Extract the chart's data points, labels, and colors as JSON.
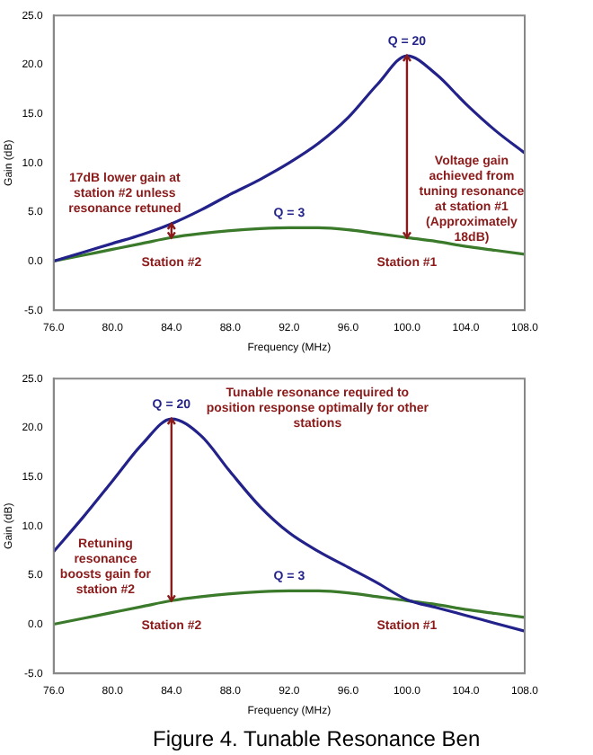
{
  "chart_data": [
    {
      "type": "line",
      "xlabel": "Frequency (MHz)",
      "ylabel": "Gain (dB)",
      "x": [
        76,
        78,
        80,
        82,
        84,
        86,
        88,
        90,
        92,
        94,
        96,
        98,
        100,
        102,
        104,
        106,
        108
      ],
      "series": [
        {
          "color": "#22228a",
          "values": [
            0,
            0.9,
            1.8,
            2.7,
            3.8,
            5.2,
            6.8,
            8.3,
            10.0,
            12.0,
            14.6,
            18.0,
            20.9,
            19.0,
            16.0,
            13.3,
            11.0
          ]
        },
        {
          "color": "#3a7a2a",
          "values": [
            0,
            0.6,
            1.2,
            1.8,
            2.4,
            2.8,
            3.1,
            3.3,
            3.4,
            3.4,
            3.2,
            2.8,
            2.4,
            2.0,
            1.5,
            1.1,
            0.7
          ]
        }
      ],
      "xlim": [
        76,
        108
      ],
      "xticks": [
        {
          "value": 76,
          "label": "76.0"
        },
        {
          "value": 80,
          "label": "80.0"
        },
        {
          "value": 84,
          "label": "84.0"
        },
        {
          "value": 88,
          "label": "88.0"
        },
        {
          "value": 92,
          "label": "92.0"
        },
        {
          "value": 96,
          "label": "96.0"
        },
        {
          "value": 100,
          "label": "100.0"
        },
        {
          "value": 104,
          "label": "104.0"
        },
        {
          "value": 108,
          "label": "108.0"
        }
      ],
      "ylim": [
        -5,
        25
      ],
      "yticks": [
        {
          "value": -5,
          "label": "-5.0"
        },
        {
          "value": 0,
          "label": "0.0"
        },
        {
          "value": 5,
          "label": "5.0"
        },
        {
          "value": 10,
          "label": "10.0"
        },
        {
          "value": 15,
          "label": "15.0"
        },
        {
          "value": 20,
          "label": "20.0"
        },
        {
          "value": 25,
          "label": "25.0"
        }
      ],
      "grid": false,
      "legend": false,
      "marker": "none",
      "line_style": "solid",
      "annotations": [
        {
          "text": "Q = 20",
          "x": 100,
          "y": 20.9
        },
        {
          "text": "Q = 3",
          "x": 92,
          "y": 3.4
        },
        {
          "text": "17dB lower gain at station #2 unless resonance retuned",
          "x": 84,
          "y": 3.8
        },
        {
          "text": "Voltage gain achieved from tuning resonance at station #1 (Approximately 18dB)",
          "x": 100,
          "y": 20.9
        },
        {
          "text": "Station #2",
          "x": 84,
          "y": 2.4
        },
        {
          "text": "Station #1",
          "x": 100,
          "y": 2.4
        }
      ]
    },
    {
      "type": "line",
      "xlabel": "Frequency (MHz)",
      "ylabel": "Gain (dB)",
      "x": [
        76,
        78,
        80,
        82,
        84,
        86,
        88,
        90,
        92,
        94,
        96,
        98,
        100,
        102,
        104,
        106,
        108
      ],
      "series": [
        {
          "color": "#22228a",
          "values": [
            7.4,
            10.9,
            14.6,
            18.3,
            20.9,
            19.2,
            15.5,
            12.0,
            9.3,
            7.4,
            5.8,
            4.2,
            2.5,
            1.7,
            0.9,
            0.1,
            -0.7
          ]
        },
        {
          "color": "#3a7a2a",
          "values": [
            0,
            0.6,
            1.2,
            1.8,
            2.4,
            2.8,
            3.1,
            3.3,
            3.4,
            3.4,
            3.2,
            2.8,
            2.4,
            2.0,
            1.5,
            1.1,
            0.7
          ]
        }
      ],
      "xlim": [
        76,
        108
      ],
      "xticks": [
        {
          "value": 76,
          "label": "76.0"
        },
        {
          "value": 80,
          "label": "80.0"
        },
        {
          "value": 84,
          "label": "84.0"
        },
        {
          "value": 88,
          "label": "88.0"
        },
        {
          "value": 92,
          "label": "92.0"
        },
        {
          "value": 96,
          "label": "96.0"
        },
        {
          "value": 100,
          "label": "100.0"
        },
        {
          "value": 104,
          "label": "104.0"
        },
        {
          "value": 108,
          "label": "108.0"
        }
      ],
      "ylim": [
        -5,
        25
      ],
      "yticks": [
        {
          "value": -5,
          "label": "-5.0"
        },
        {
          "value": 0,
          "label": "0.0"
        },
        {
          "value": 5,
          "label": "5.0"
        },
        {
          "value": 10,
          "label": "10.0"
        },
        {
          "value": 15,
          "label": "15.0"
        },
        {
          "value": 20,
          "label": "20.0"
        },
        {
          "value": 25,
          "label": "25.0"
        }
      ],
      "grid": false,
      "legend": false,
      "marker": "none",
      "line_style": "solid",
      "annotations": [
        {
          "text": "Q = 20",
          "x": 84,
          "y": 20.9
        },
        "Tunable resonance required to position response optimally for other stations",
        "Retuning resonance boosts gain for station #2",
        {
          "text": "Q = 3",
          "x": 92,
          "y": 3.4
        },
        {
          "text": "Station #2",
          "x": 84,
          "y": 2.4
        },
        {
          "text": "Station #1",
          "x": 100,
          "y": 2.4
        },
        "Figure 4. Tunable Resonance Ben"
      ]
    }
  ]
}
